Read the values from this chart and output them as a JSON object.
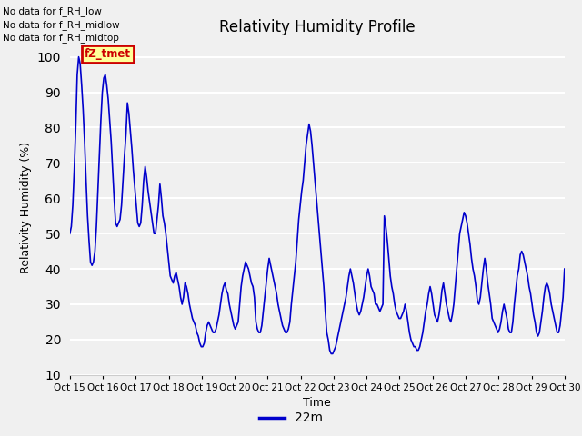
{
  "title": "Relativity Humidity Profile",
  "ylabel": "Relativity Humidity (%)",
  "xlabel": "Time",
  "ylim": [
    10,
    105
  ],
  "yticks": [
    10,
    20,
    30,
    40,
    50,
    60,
    70,
    80,
    90,
    100
  ],
  "line_color": "#0000cc",
  "line_width": 1.2,
  "legend_label": "22m",
  "background_color": "#f0f0f0",
  "axes_facecolor": "#f0f0f0",
  "annotation_texts": [
    "No data for f_RH_low",
    "No data for f_RH_midlow",
    "No data for f_RH_midtop"
  ],
  "tooltip_text": "fZ_tmet",
  "tooltip_bg": "#ffff99",
  "tooltip_border": "#cc0000",
  "tooltip_text_color": "#cc0000",
  "xtick_labels": [
    "Oct 15",
    "Oct 16",
    "Oct 17",
    "Oct 18",
    "Oct 19",
    "Oct 20",
    "Oct 21",
    "Oct 22",
    "Oct 23",
    "Oct 24",
    "Oct 25",
    "Oct 26",
    "Oct 27",
    "Oct 28",
    "Oct 29",
    "Oct 30"
  ],
  "y_values": [
    50,
    52,
    58,
    68,
    80,
    95,
    100,
    98,
    92,
    85,
    76,
    65,
    55,
    48,
    42,
    41,
    42,
    45,
    52,
    62,
    72,
    82,
    90,
    94,
    95,
    92,
    88,
    82,
    76,
    68,
    60,
    53,
    52,
    53,
    54,
    58,
    65,
    72,
    78,
    87,
    84,
    79,
    74,
    68,
    63,
    58,
    53,
    52,
    53,
    58,
    65,
    69,
    66,
    62,
    59,
    56,
    53,
    50,
    50,
    54,
    58,
    64,
    60,
    55,
    53,
    50,
    46,
    42,
    38,
    37,
    36,
    38,
    39,
    37,
    35,
    32,
    30,
    32,
    36,
    35,
    33,
    30,
    28,
    26,
    25,
    24,
    22,
    21,
    19,
    18,
    18,
    19,
    22,
    24,
    25,
    24,
    23,
    22,
    22,
    23,
    25,
    27,
    30,
    33,
    35,
    36,
    34,
    33,
    30,
    28,
    26,
    24,
    23,
    24,
    25,
    30,
    35,
    38,
    40,
    42,
    41,
    40,
    38,
    36,
    35,
    32,
    25,
    23,
    22,
    22,
    24,
    28,
    32,
    36,
    40,
    43,
    41,
    39,
    37,
    35,
    33,
    30,
    28,
    26,
    24,
    23,
    22,
    22,
    23,
    25,
    30,
    34,
    38,
    42,
    48,
    54,
    58,
    62,
    65,
    70,
    75,
    78,
    81,
    79,
    75,
    70,
    65,
    60,
    55,
    50,
    45,
    40,
    35,
    28,
    22,
    20,
    17,
    16,
    16,
    17,
    18,
    20,
    22,
    24,
    26,
    28,
    30,
    32,
    35,
    38,
    40,
    38,
    36,
    33,
    30,
    28,
    27,
    28,
    30,
    32,
    35,
    38,
    40,
    38,
    35,
    34,
    33,
    30,
    30,
    29,
    28,
    29,
    30,
    55,
    52,
    48,
    43,
    38,
    35,
    33,
    30,
    28,
    27,
    26,
    26,
    27,
    28,
    30,
    28,
    25,
    22,
    20,
    19,
    18,
    18,
    17,
    17,
    18,
    20,
    22,
    25,
    28,
    30,
    33,
    35,
    33,
    30,
    27,
    26,
    25,
    27,
    30,
    34,
    36,
    33,
    30,
    28,
    26,
    25,
    27,
    30,
    35,
    40,
    45,
    50,
    52,
    54,
    56,
    55,
    53,
    50,
    47,
    43,
    40,
    38,
    35,
    31,
    30,
    32,
    36,
    40,
    43,
    40,
    36,
    33,
    30,
    26,
    25,
    24,
    23,
    22,
    23,
    25,
    28,
    30,
    28,
    26,
    23,
    22,
    22,
    25,
    30,
    34,
    38,
    40,
    44,
    45,
    44,
    42,
    40,
    38,
    35,
    33,
    30,
    27,
    25,
    22,
    21,
    22,
    25,
    28,
    32,
    35,
    36,
    35,
    33,
    30,
    28,
    26,
    24,
    22,
    22,
    24,
    28,
    32,
    40
  ]
}
